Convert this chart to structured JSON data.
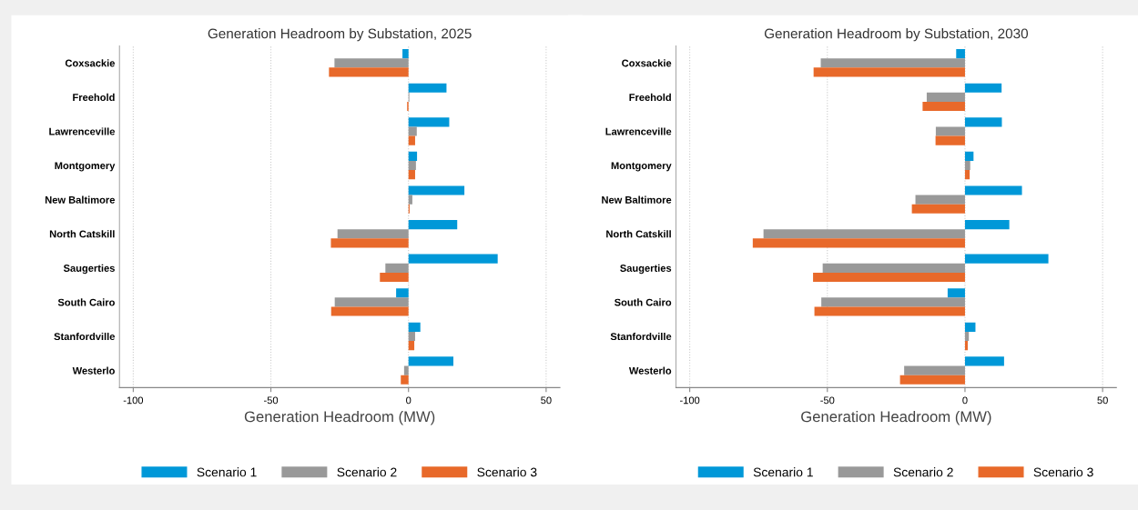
{
  "chart_data": [
    {
      "type": "bar",
      "orientation": "horizontal",
      "title": "Generation Headroom by Substation, 2025",
      "xlabel": "Generation Headroom (MW)",
      "categories": [
        "Coxsackie",
        "Freehold",
        "Lawrenceville",
        "Montgomery",
        "New Baltimore",
        "North Catskill",
        "Saugerties",
        "South Cairo",
        "Stanfordville",
        "Westerlo"
      ],
      "series": [
        {
          "name": "Scenario 1",
          "color": "#0098d8",
          "values": [
            -2.2,
            13.8,
            14.8,
            3.1,
            20.3,
            17.7,
            32.4,
            -4.5,
            4.3,
            16.3
          ]
        },
        {
          "name": "Scenario 2",
          "color": "#999999",
          "values": [
            -26.9,
            0.3,
            3.0,
            2.7,
            1.4,
            -25.8,
            -8.4,
            -26.8,
            2.4,
            -1.6
          ]
        },
        {
          "name": "Scenario 3",
          "color": "#e8692a",
          "values": [
            -28.9,
            -0.5,
            2.4,
            2.4,
            0.4,
            -28.2,
            -10.4,
            -28.1,
            2.1,
            -2.8
          ]
        }
      ],
      "xlim": [
        -105,
        55
      ],
      "xticks": [
        -100,
        -50,
        0,
        50
      ],
      "grid": "x",
      "legend": "bottom"
    },
    {
      "type": "bar",
      "orientation": "horizontal",
      "title": "Generation Headroom by Substation, 2030",
      "xlabel": "Generation Headroom (MW)",
      "categories": [
        "Coxsackie",
        "Freehold",
        "Lawrenceville",
        "Montgomery",
        "New Baltimore",
        "North Catskill",
        "Saugerties",
        "South Cairo",
        "Stanfordville",
        "Westerlo"
      ],
      "series": [
        {
          "name": "Scenario 1",
          "color": "#0098d8",
          "values": [
            -3.2,
            13.3,
            13.4,
            3.1,
            20.7,
            16.1,
            30.3,
            -6.3,
            3.8,
            14.2
          ]
        },
        {
          "name": "Scenario 2",
          "color": "#999999",
          "values": [
            -52.4,
            -13.9,
            -10.6,
            1.9,
            -18.0,
            -73.2,
            -51.7,
            -52.2,
            1.4,
            -22.1
          ]
        },
        {
          "name": "Scenario 3",
          "color": "#e8692a",
          "values": [
            -55.0,
            -15.4,
            -10.7,
            1.7,
            -19.3,
            -77.1,
            -55.2,
            -54.7,
            1.0,
            -23.6
          ]
        }
      ],
      "xlim": [
        -105,
        55
      ],
      "xticks": [
        -100,
        -50,
        0,
        50
      ],
      "grid": "x",
      "legend": "bottom"
    }
  ]
}
